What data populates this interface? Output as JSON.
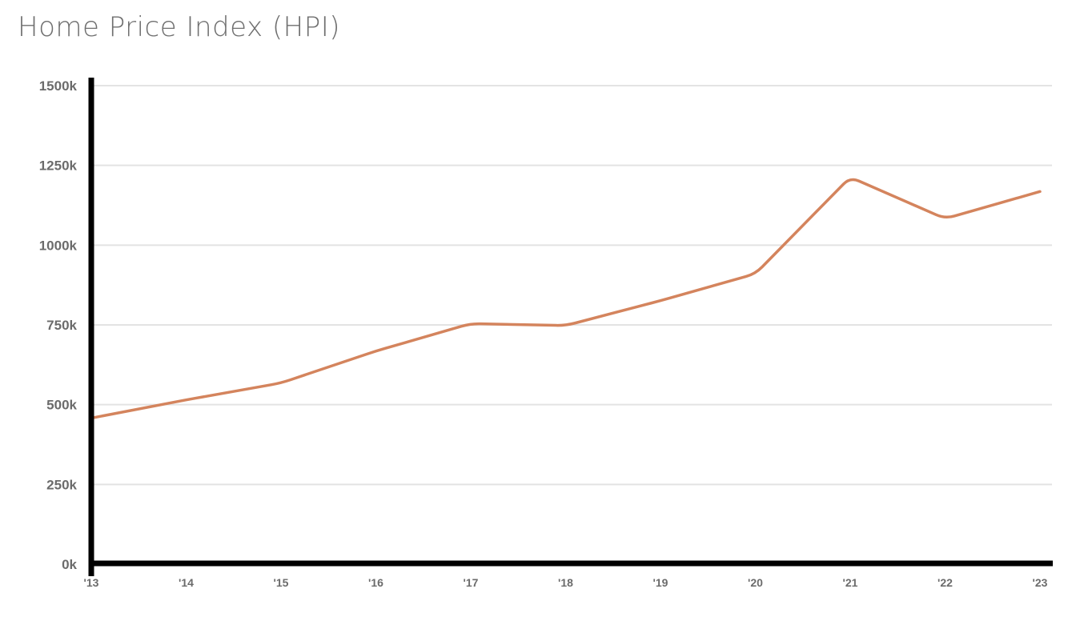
{
  "chart_data": {
    "type": "line",
    "title": "Home Price Index (HPI)",
    "xlabel": "",
    "ylabel": "",
    "categories": [
      "'13",
      "'14",
      "'15",
      "'16",
      "'17",
      "'18",
      "'19",
      "'20",
      "'21",
      "'22",
      "'23"
    ],
    "series": [
      {
        "values": [
          458,
          515,
          568,
          668,
          754,
          748,
          826,
          910,
          1213,
          1083,
          1168
        ]
      }
    ],
    "y_ticks": [
      "0k",
      "250k",
      "500k",
      "750k",
      "1000k",
      "1250k",
      "1500k"
    ],
    "ylim": [
      0,
      1500
    ],
    "y_unit": "k",
    "grid": true,
    "legend": "none",
    "colors": {
      "line": "#d4845d",
      "axis": "#000000",
      "grid": "#e3e3e3",
      "tick_text": "#6b6b6b",
      "title_text": "#6f6f6f"
    }
  }
}
